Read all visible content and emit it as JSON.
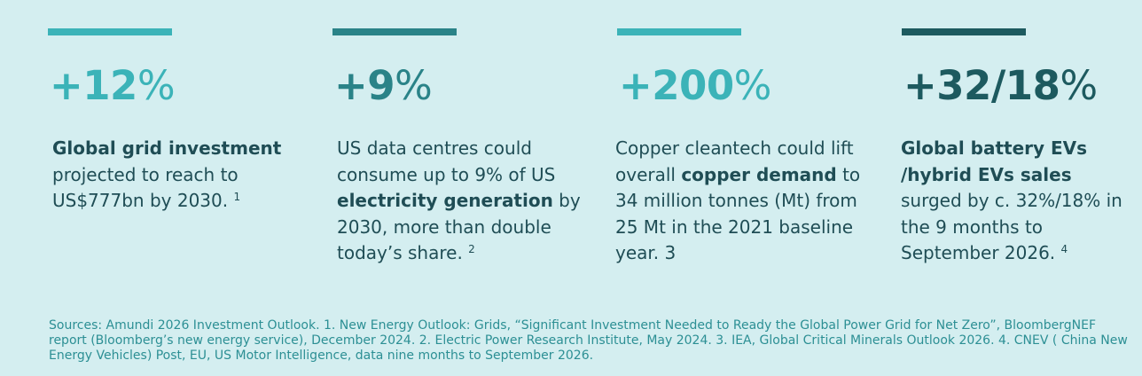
{
  "colors": {
    "background": "#d4eef0",
    "text_dark": "#1f4d55",
    "teal_light": "#3bb3b8",
    "teal_mid": "#2a8388",
    "teal_dark": "#1d5a5f",
    "source_text": "#2c8f94"
  },
  "stats": [
    {
      "value": "+12",
      "pct": "%",
      "desc": [
        {
          "t": "Global grid investment",
          "b": true
        },
        {
          "t": " projected to reach  to US$777bn by 2030. ",
          "b": false
        }
      ],
      "footnote": "1"
    },
    {
      "value": "+9",
      "pct": "%",
      "desc": [
        {
          "t": "US data centres could consume up to 9% of US ",
          "b": false
        },
        {
          "t": "electricity generation",
          "b": true
        },
        {
          "t": " by 2030, more than double today’s share. ",
          "b": false
        }
      ],
      "footnote": "2"
    },
    {
      "value": "+200",
      "pct": "%",
      "desc": [
        {
          "t": "Copper cleantech could lift overall ",
          "b": false
        },
        {
          "t": "copper demand",
          "b": true
        },
        {
          "t": " to 34 million tonnes (Mt) from 25 Mt in the 2021 baseline year. 3",
          "b": false
        }
      ],
      "footnote": ""
    },
    {
      "value": "+32/18",
      "pct": "%",
      "desc": [
        {
          "t": "Global battery EVs /hybrid EVs sales",
          "b": true
        },
        {
          "t": " surged by c. 32%/18% in the 9 months to September 2026. ",
          "b": false
        }
      ],
      "footnote": "4"
    }
  ],
  "sources": "Sources: Amundi 2026 Investment Outlook. 1.  New Energy Outlook: Grids, “Significant Investment Needed to Ready the Global Power Grid for Net Zero”, BloombergNEF report (Bloomberg’s new energy service), December 2024.  2. Electric Power Research Institute, May 2024. 3. IEA, Global Critical Minerals Outlook 2026. 4. CNEV ( China New Energy Vehicles) Post, EU, US Motor Intelligence, data nine months to September 2026."
}
